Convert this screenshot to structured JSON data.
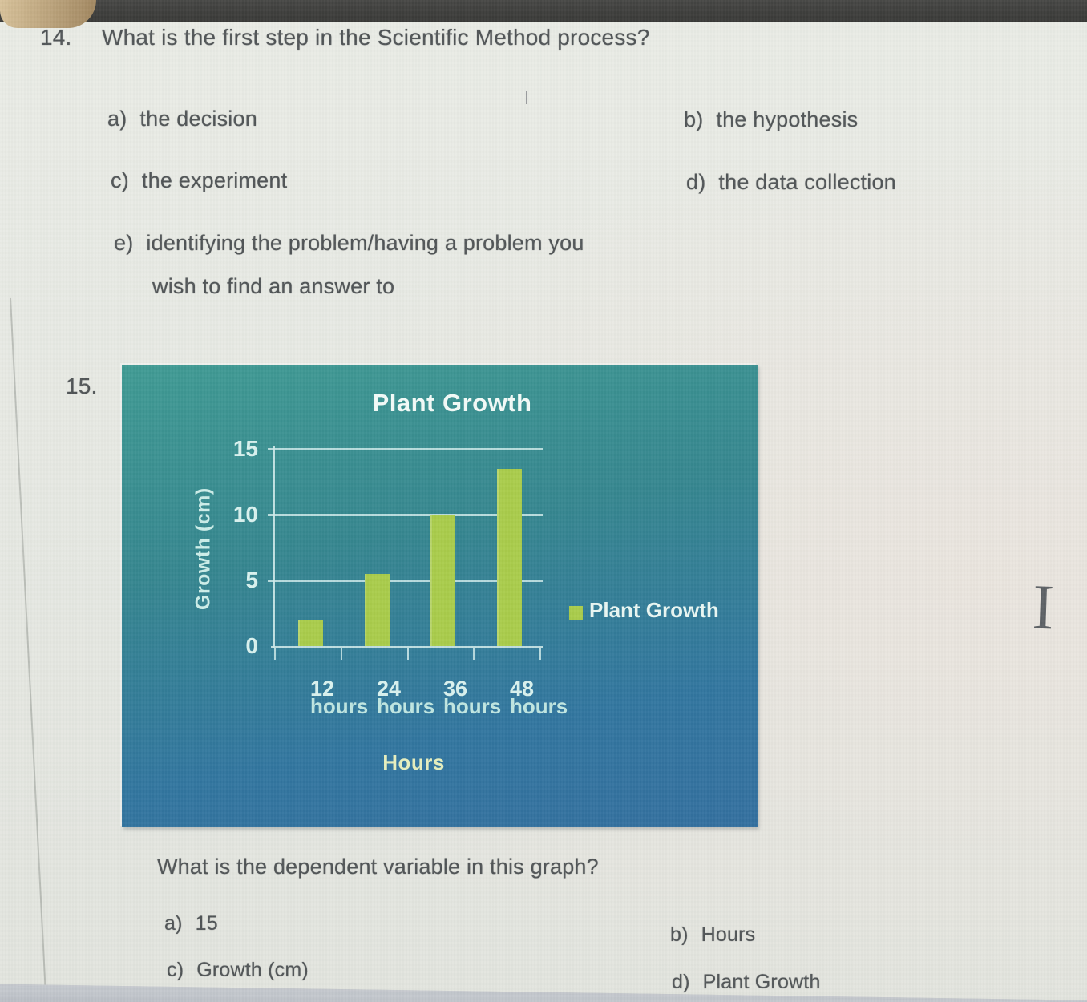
{
  "q14": {
    "number": "14.",
    "question": "What is the first step in the Scientific Method process?",
    "options": [
      {
        "letter": "a)",
        "text": "the decision"
      },
      {
        "letter": "b)",
        "text": "the hypothesis"
      },
      {
        "letter": "c)",
        "text": "the experiment"
      },
      {
        "letter": "d)",
        "text": "the data collection"
      },
      {
        "letter": "e)",
        "text": "identifying the problem/having a problem you",
        "text2": "wish to find an answer to"
      }
    ]
  },
  "q15": {
    "number": "15.",
    "question": "What is the dependent variable in this graph?",
    "options": [
      {
        "letter": "a)",
        "text": "15"
      },
      {
        "letter": "b)",
        "text": "Hours"
      },
      {
        "letter": "c)",
        "text": "Growth (cm)"
      },
      {
        "letter": "d)",
        "text": "Plant Growth"
      }
    ]
  },
  "chart_data": {
    "type": "bar",
    "title": "Plant Growth",
    "categories": [
      "12 hours",
      "24 hours",
      "36 hours",
      "48 hours"
    ],
    "values": [
      2,
      5.5,
      10,
      13.5
    ],
    "xlabel": "Hours",
    "ylabel": "Growth (cm)",
    "yticks": [
      0,
      5,
      10,
      15
    ],
    "ylim": [
      0,
      15
    ],
    "grid": true,
    "legend": [
      {
        "label": "Plant Growth",
        "color": "#a9cc4a"
      }
    ],
    "legend_position": "right",
    "colors": {
      "background_top": "#3f9a93",
      "background_bottom": "#336f9f",
      "bar": "#a9cc4a",
      "axis": "#cfeaea",
      "tick_text": "#d9f2ef",
      "hours_text": "#bfe6e1"
    }
  },
  "artifacts": {
    "text_cursor_glyph": "I"
  }
}
